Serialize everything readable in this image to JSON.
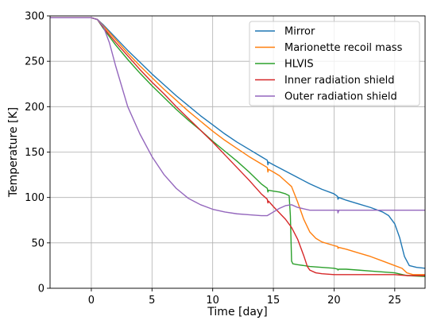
{
  "chart_data": {
    "type": "line",
    "title": "",
    "xlabel": "Time [day]",
    "ylabel": "Temperature [K]",
    "xlim": [
      -3.4,
      27.5
    ],
    "ylim": [
      0,
      300
    ],
    "xticks": [
      0,
      5,
      10,
      15,
      20,
      25
    ],
    "yticks": [
      0,
      50,
      100,
      150,
      200,
      250,
      300
    ],
    "grid": true,
    "legend_position": "top-right",
    "series": [
      {
        "name": "Mirror",
        "color": "#1f77b4",
        "x": [
          -3.4,
          -2.0,
          -1.0,
          0.0,
          0.5,
          1.0,
          2.0,
          3.0,
          4.0,
          5.0,
          6.0,
          7.0,
          8.0,
          9.0,
          10.0,
          11.0,
          12.0,
          13.0,
          14.0,
          14.5,
          14.55,
          14.6,
          15.0,
          16.0,
          17.0,
          18.0,
          19.0,
          20.0,
          20.3,
          20.32,
          20.4,
          21.0,
          22.0,
          23.0,
          24.0,
          24.5,
          25.0,
          25.4,
          25.8,
          26.2,
          26.8,
          27.5
        ],
        "y": [
          298,
          298,
          298,
          298,
          296,
          290,
          276,
          262,
          249,
          236,
          224,
          212,
          201,
          190,
          180,
          170,
          161,
          153,
          145,
          141,
          136,
          139,
          136,
          129,
          122,
          115,
          109,
          104,
          101,
          98,
          100,
          97,
          93,
          89,
          84,
          80,
          71,
          56,
          35,
          25,
          23,
          22
        ]
      },
      {
        "name": "Marionette recoil mass",
        "color": "#ff7f0e",
        "x": [
          -3.4,
          -2.0,
          -1.0,
          0.0,
          0.5,
          1.0,
          2.0,
          3.0,
          4.0,
          5.0,
          6.0,
          7.0,
          8.0,
          9.0,
          10.0,
          11.0,
          12.0,
          13.0,
          14.0,
          14.5,
          14.55,
          14.6,
          15.0,
          15.5,
          16.0,
          16.5,
          17.0,
          17.5,
          18.0,
          18.5,
          19.0,
          20.0,
          20.3,
          20.32,
          20.4,
          21.0,
          22.0,
          23.0,
          24.0,
          25.0,
          25.6,
          26.0,
          26.5,
          27.5
        ],
        "y": [
          298,
          298,
          298,
          298,
          296,
          289,
          274,
          259,
          245,
          232,
          219,
          207,
          195,
          184,
          173,
          163,
          154,
          145,
          137,
          133,
          128,
          131,
          128,
          124,
          118,
          112,
          95,
          76,
          62,
          55,
          51,
          47,
          46,
          44,
          45,
          43,
          39,
          35,
          30,
          25,
          22,
          17,
          15,
          15
        ]
      },
      {
        "name": "HLVIS",
        "color": "#2ca02c",
        "x": [
          -3.4,
          -2.0,
          -1.0,
          0.0,
          0.5,
          1.0,
          2.0,
          3.0,
          4.0,
          5.0,
          6.0,
          7.0,
          8.0,
          9.0,
          10.0,
          11.0,
          12.0,
          13.0,
          14.0,
          14.5,
          14.55,
          14.6,
          15.0,
          15.5,
          16.0,
          16.3,
          16.4,
          16.5,
          16.6,
          17.0,
          18.0,
          19.0,
          20.0,
          20.3,
          20.32,
          20.4,
          21.0,
          22.0,
          23.0,
          24.0,
          25.0,
          26.0,
          27.5
        ],
        "y": [
          298,
          298,
          298,
          298,
          296,
          286,
          268,
          252,
          237,
          223,
          210,
          197,
          185,
          174,
          162,
          151,
          140,
          128,
          115,
          110,
          106,
          108,
          107,
          106,
          104,
          102,
          80,
          30,
          27,
          26,
          24,
          23,
          22,
          21,
          20,
          21,
          21,
          20,
          19,
          18,
          17,
          14,
          13
        ]
      },
      {
        "name": "Inner radiation shield",
        "color": "#d62728",
        "x": [
          -3.4,
          -2.0,
          -1.0,
          0.0,
          0.5,
          1.0,
          2.0,
          3.0,
          4.0,
          5.0,
          6.0,
          7.0,
          8.0,
          9.0,
          10.0,
          11.0,
          12.0,
          13.0,
          14.0,
          14.5,
          14.55,
          14.6,
          15.0,
          15.5,
          16.0,
          16.5,
          17.0,
          17.5,
          17.8,
          18.0,
          18.5,
          19.0,
          20.0,
          21.0,
          22.0,
          23.0,
          24.0,
          25.0,
          26.0,
          27.5
        ],
        "y": [
          298,
          298,
          298,
          298,
          296,
          287,
          271,
          256,
          241,
          227,
          214,
          200,
          187,
          174,
          161,
          147,
          133,
          119,
          104,
          98,
          94,
          96,
          90,
          83,
          76,
          67,
          54,
          36,
          24,
          20,
          17,
          16,
          15,
          15,
          15,
          15,
          15,
          15,
          14,
          14
        ]
      },
      {
        "name": "Outer radiation shield",
        "color": "#9467bd",
        "x": [
          -3.4,
          -2.0,
          -1.0,
          0.0,
          0.5,
          1.0,
          1.5,
          2.0,
          3.0,
          4.0,
          5.0,
          6.0,
          7.0,
          8.0,
          9.0,
          10.0,
          11.0,
          12.0,
          13.0,
          14.0,
          14.5,
          15.0,
          15.5,
          16.0,
          16.5,
          17.0,
          18.0,
          19.0,
          20.0,
          20.3,
          20.32,
          20.4,
          21.0,
          22.0,
          23.0,
          24.0,
          25.0,
          26.0,
          27.5
        ],
        "y": [
          298,
          298,
          298,
          298,
          296,
          288,
          270,
          245,
          200,
          170,
          145,
          125,
          110,
          99,
          92,
          87,
          84,
          82,
          81,
          80,
          80,
          84,
          88,
          91,
          92,
          89,
          86,
          86,
          86,
          86,
          83,
          86,
          86,
          86,
          86,
          86,
          86,
          86,
          86
        ]
      }
    ]
  }
}
